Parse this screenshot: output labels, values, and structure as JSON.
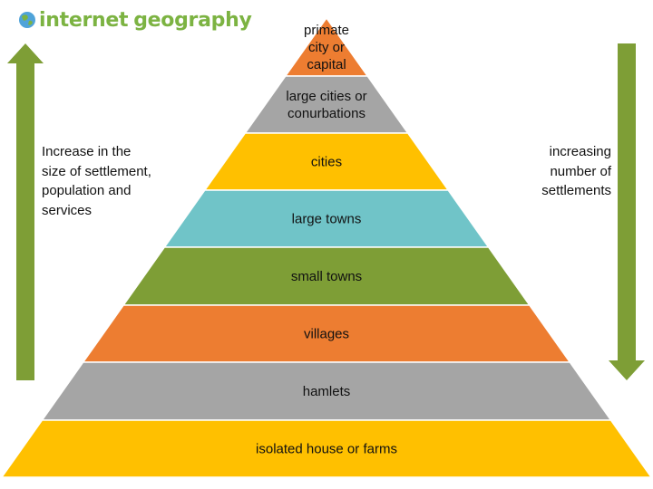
{
  "logo": {
    "word1": "internet",
    "word2": "geography",
    "globe_icon": "globe-icon",
    "color": "#7cb342"
  },
  "pyramid": {
    "layers": [
      {
        "label_lines": [
          "primate",
          "city or",
          "capital"
        ],
        "color": "#ed7d31"
      },
      {
        "label_lines": [
          "large cities or",
          "conurbations"
        ],
        "color": "#a5a5a5"
      },
      {
        "label_lines": [
          "cities"
        ],
        "color": "#ffc000"
      },
      {
        "label_lines": [
          "large towns"
        ],
        "color": "#70c4c8"
      },
      {
        "label_lines": [
          "small towns"
        ],
        "color": "#7e9e36"
      },
      {
        "label_lines": [
          "villages"
        ],
        "color": "#ed7d31"
      },
      {
        "label_lines": [
          "hamlets"
        ],
        "color": "#a5a5a5"
      },
      {
        "label_lines": [
          "isolated house or farms"
        ],
        "color": "#ffc000"
      }
    ]
  },
  "left_annotation": {
    "lines": [
      "Increase in the",
      "size of settlement,",
      "population and",
      "services"
    ],
    "arrow_direction": "up",
    "arrow_icon": "up-arrow-icon",
    "arrow_color": "#7e9e36"
  },
  "right_annotation": {
    "lines": [
      "increasing",
      "number of",
      "settlements"
    ],
    "arrow_direction": "down",
    "arrow_icon": "down-arrow-icon",
    "arrow_color": "#7e9e36"
  }
}
